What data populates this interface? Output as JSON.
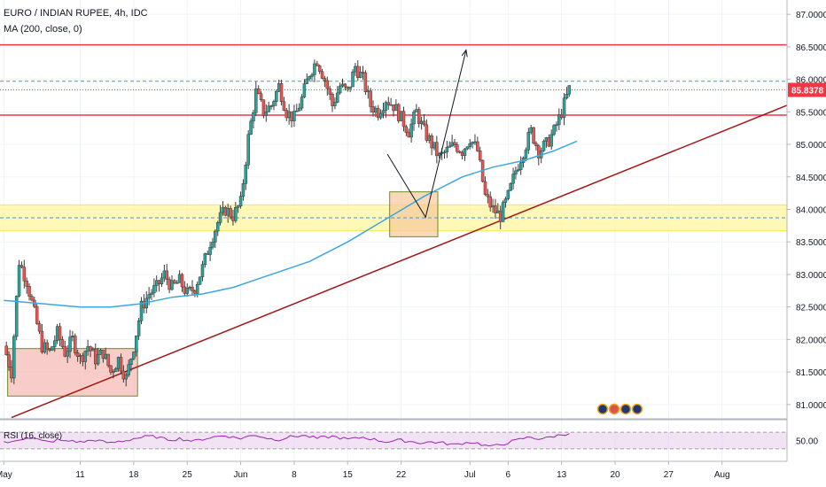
{
  "header": {
    "title": "EURO / INDIAN RUPEE, 4h, IDC",
    "ma_label": "MA (200, close, 0)",
    "rsi_label": "RSI (16, close)"
  },
  "colors": {
    "up": "#26a69a",
    "down": "#ef5350",
    "candle": "#3a3a3a",
    "ma": "#3ea7e0",
    "trendline": "#a31515",
    "horizontal_line": "#f23645",
    "dashed_line": "#4a90e2",
    "zone_yellow": "#fff59d",
    "box_fill": "#f5b7b1",
    "box_border": "#6b8e23",
    "rsi_line": "#9c27b0",
    "rsi_band": "#e1bee7",
    "price_badge": "#f23645"
  },
  "chart_data": {
    "type": "candlestick",
    "symbol": "EURO / INDIAN RUPEE",
    "interval": "4h",
    "source": "IDC",
    "last_price": "85.8378",
    "y_ticks": [
      "87.0000",
      "86.5000",
      "86.0000",
      "85.5000",
      "85.0000",
      "84.5000",
      "84.0000",
      "83.5000",
      "83.0000",
      "82.5000",
      "82.0000",
      "81.5000",
      "81.0000"
    ],
    "ylim": [
      80.78,
      87.22
    ],
    "x_ticks": [
      "May",
      "11",
      "18",
      "25",
      "Jun",
      "8",
      "15",
      "22",
      "Jul",
      "6",
      "13",
      "20",
      "27",
      "Aug"
    ],
    "x_tick_days": [
      0,
      10,
      17,
      24,
      31,
      38,
      45,
      52,
      61,
      66,
      73,
      80,
      87,
      94
    ],
    "xlim_days": [
      -0.5,
      102.5
    ],
    "price_path": [
      [
        0,
        81.9
      ],
      [
        1,
        81.5
      ],
      [
        2,
        83.2
      ],
      [
        3,
        82.9
      ],
      [
        4,
        82.4
      ],
      [
        5,
        81.9
      ],
      [
        6,
        81.8
      ],
      [
        7,
        82.1
      ],
      [
        8,
        81.8
      ],
      [
        9,
        82.0
      ],
      [
        10,
        81.7
      ],
      [
        11,
        81.9
      ],
      [
        12,
        81.7
      ],
      [
        13,
        81.8
      ],
      [
        14,
        81.5
      ],
      [
        15,
        81.7
      ],
      [
        16,
        81.4
      ],
      [
        17,
        81.9
      ],
      [
        18,
        82.5
      ],
      [
        19,
        82.7
      ],
      [
        20,
        82.8
      ],
      [
        21,
        83.0
      ],
      [
        22,
        82.8
      ],
      [
        23,
        82.9
      ],
      [
        24,
        82.7
      ],
      [
        25,
        82.8
      ],
      [
        26,
        83.1
      ],
      [
        27,
        83.5
      ],
      [
        28,
        83.8
      ],
      [
        29,
        84.0
      ],
      [
        30,
        83.9
      ],
      [
        31,
        84.1
      ],
      [
        32,
        85.1
      ],
      [
        33,
        85.8
      ],
      [
        34,
        85.5
      ],
      [
        35,
        85.6
      ],
      [
        36,
        85.9
      ],
      [
        37,
        85.5
      ],
      [
        38,
        85.4
      ],
      [
        39,
        85.7
      ],
      [
        40,
        86.1
      ],
      [
        41,
        86.3
      ],
      [
        42,
        86.0
      ],
      [
        43,
        85.6
      ],
      [
        44,
        85.9
      ],
      [
        45,
        85.8
      ],
      [
        46,
        86.2
      ],
      [
        47,
        86.0
      ],
      [
        48,
        85.6
      ],
      [
        49,
        85.5
      ],
      [
        50,
        85.7
      ],
      [
        51,
        85.6
      ],
      [
        52,
        85.4
      ],
      [
        53,
        85.2
      ],
      [
        54,
        85.5
      ],
      [
        55,
        85.2
      ],
      [
        56,
        85.0
      ],
      [
        57,
        84.8
      ],
      [
        58,
        84.9
      ],
      [
        59,
        85.0
      ],
      [
        60,
        84.9
      ],
      [
        61,
        85.1
      ],
      [
        62,
        84.9
      ],
      [
        63,
        84.2
      ],
      [
        64,
        84.0
      ],
      [
        65,
        83.9
      ],
      [
        66,
        84.2
      ],
      [
        67,
        84.6
      ],
      [
        68,
        84.9
      ],
      [
        69,
        85.2
      ],
      [
        70,
        84.9
      ],
      [
        71,
        85.0
      ],
      [
        72,
        85.2
      ],
      [
        73,
        85.5
      ],
      [
        74,
        85.85
      ]
    ],
    "ma_200": [
      [
        0,
        82.6
      ],
      [
        5,
        82.55
      ],
      [
        10,
        82.5
      ],
      [
        14,
        82.5
      ],
      [
        18,
        82.55
      ],
      [
        22,
        82.65
      ],
      [
        26,
        82.7
      ],
      [
        30,
        82.8
      ],
      [
        35,
        83.0
      ],
      [
        40,
        83.2
      ],
      [
        45,
        83.5
      ],
      [
        50,
        83.85
      ],
      [
        55,
        84.2
      ],
      [
        60,
        84.5
      ],
      [
        64,
        84.65
      ],
      [
        68,
        84.75
      ],
      [
        72,
        84.9
      ],
      [
        75,
        85.05
      ]
    ],
    "rsi": {
      "ylim": [
        0,
        100
      ],
      "levels": [
        30,
        70
      ],
      "y_ticks": [
        "50.00"
      ],
      "values": [
        47,
        45,
        52,
        58,
        55,
        49,
        46,
        52,
        48,
        50,
        46,
        49,
        51,
        47,
        44,
        48,
        50,
        55,
        57,
        60,
        58,
        54,
        52,
        55,
        51,
        49,
        53,
        57,
        60,
        62,
        58,
        55,
        60,
        63,
        58,
        54,
        52,
        57,
        60,
        62,
        59,
        55,
        58,
        60,
        56,
        53,
        55,
        58,
        54,
        50,
        47,
        49,
        51,
        48,
        46,
        44,
        47,
        45,
        42,
        40,
        43,
        46,
        44,
        38,
        36,
        40,
        45,
        50,
        55,
        58,
        54,
        56,
        60,
        64,
        68
      ]
    },
    "annotations": {
      "horizontal_lines": [
        86.53,
        85.45
      ],
      "dashed_lines": [
        85.97,
        83.87
      ],
      "dotted_line": 85.84,
      "yellow_zone": [
        83.67,
        84.07
      ],
      "boxes": [
        {
          "x": [
            0.5,
            17.5
          ],
          "y": [
            81.13,
            81.86
          ]
        },
        {
          "x": [
            50.5,
            56.8
          ],
          "y": [
            83.58,
            84.27
          ]
        }
      ],
      "trendline": [
        [
          1,
          80.8
        ],
        [
          102.5,
          85.6
        ]
      ],
      "arrows": [
        [
          [
            50.2,
            84.85
          ],
          [
            55.2,
            83.88
          ],
          [
            60.5,
            86.45
          ]
        ]
      ]
    }
  }
}
